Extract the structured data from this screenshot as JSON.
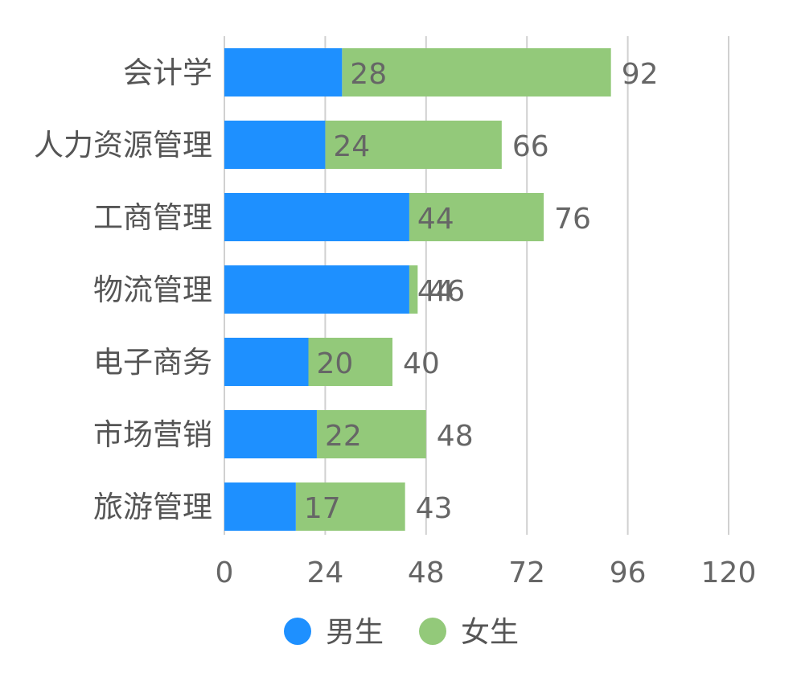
{
  "chart_data": {
    "type": "bar",
    "orientation": "horizontal",
    "stacked": true,
    "title": "",
    "xlabel": "",
    "ylabel": "",
    "categories": [
      "会计学",
      "人力资源管理",
      "工商管理",
      "物流管理",
      "电子商务",
      "市场营销",
      "旅游管理"
    ],
    "series": [
      {
        "name": "男生",
        "color": "#1E90FF",
        "values": [
          28,
          24,
          44,
          44,
          20,
          22,
          17
        ]
      },
      {
        "name": "女生",
        "color": "#93C97A",
        "values": [
          92,
          66,
          76,
          46,
          40,
          48,
          43
        ]
      }
    ],
    "xlim": [
      0,
      120
    ],
    "xticks": [
      0,
      24,
      48,
      72,
      96,
      120
    ],
    "grid": "vertical",
    "legend_position": "bottom",
    "colors": {
      "grid": "#D0D0D0",
      "label_text": "#666666",
      "category_text": "#555555"
    }
  }
}
